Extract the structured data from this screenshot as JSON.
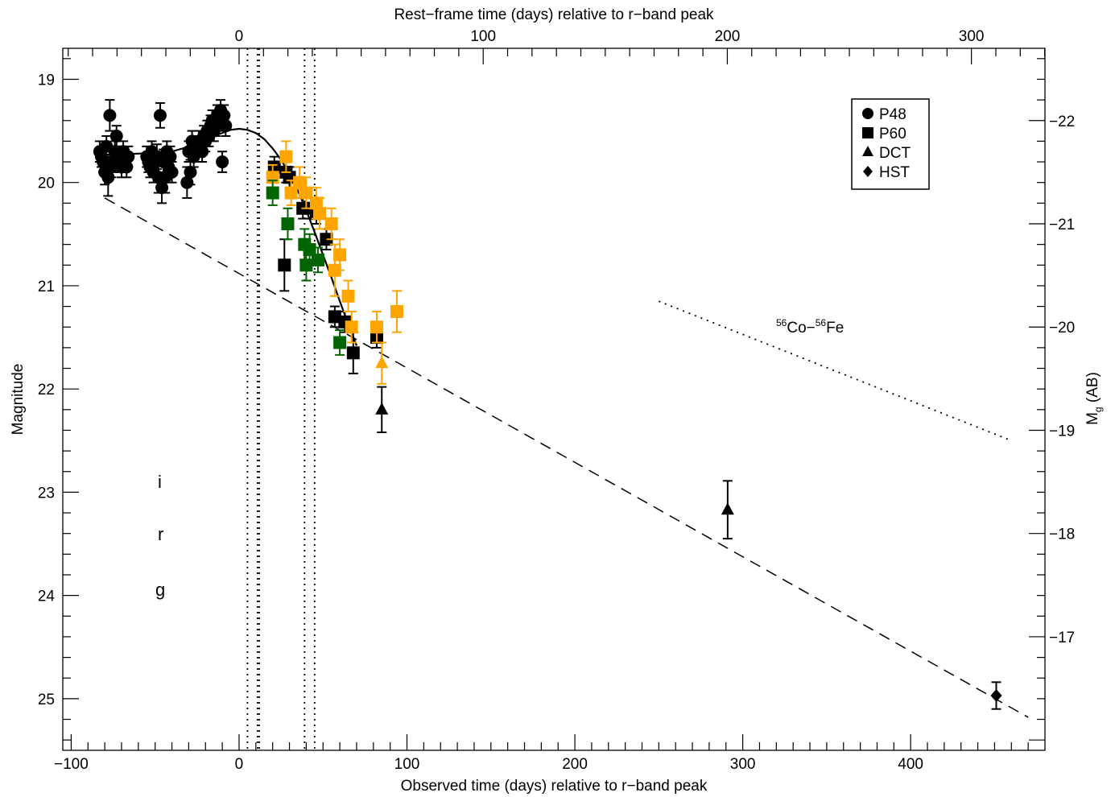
{
  "chart_data": {
    "type": "scatter",
    "title": "",
    "xlabel": "Observed time (days) relative to r−band peak",
    "x2label": "Rest−frame time (days) relative to r−band peak",
    "ylabel": "Magnitude",
    "y2label_main": "M",
    "y2label_sub": "g",
    "y2label_tail": " (AB)",
    "xlim": [
      -105,
      480
    ],
    "ylim": [
      25.5,
      18.7
    ],
    "x_ticks": [
      -100,
      0,
      100,
      200,
      300,
      400
    ],
    "x_tick_labels": [
      "−100",
      "0",
      "100",
      "200",
      "300",
      "400"
    ],
    "x2_ticks": [
      0,
      100,
      200,
      300
    ],
    "x2_tick_labels": [
      "0",
      "100",
      "200",
      "300"
    ],
    "x2_scale": 1.454,
    "y_ticks": [
      19,
      20,
      21,
      22,
      23,
      24,
      25
    ],
    "y_tick_labels": [
      "19",
      "20",
      "21",
      "22",
      "23",
      "24",
      "25"
    ],
    "y2_ticks": [
      -22,
      -21,
      -20,
      -19,
      -18,
      -17
    ],
    "y2_tick_labels": [
      "−22",
      "−21",
      "−20",
      "−19",
      "−18",
      "−17"
    ],
    "y2_offset": 41.4,
    "colors": {
      "r": "#000000",
      "i": "#FFA500",
      "g": "#006400"
    },
    "legend": {
      "position": "top-right",
      "entries": [
        {
          "label": "P48",
          "marker": "circle"
        },
        {
          "label": "P60",
          "marker": "square"
        },
        {
          "label": "DCT",
          "marker": "triangle"
        },
        {
          "label": "HST",
          "marker": "diamond"
        }
      ]
    },
    "band_labels": [
      {
        "text": "i",
        "band": "i"
      },
      {
        "text": "r",
        "band": "r"
      },
      {
        "text": "g",
        "band": "g"
      }
    ],
    "annotation": {
      "sup1": "56",
      "text1": "Co−",
      "sup2": "56",
      "text2": "Fe"
    },
    "vlines": [
      5,
      11,
      12,
      39,
      45
    ],
    "series": [
      {
        "name": "P48",
        "band": "r",
        "marker": "circle",
        "points": [
          [
            -83,
            19.7,
            0.1
          ],
          [
            -82,
            19.75,
            0.1
          ],
          [
            -81,
            19.8,
            0.1
          ],
          [
            -80,
            19.9,
            0.12
          ],
          [
            -79,
            19.65,
            0.1
          ],
          [
            -78,
            19.95,
            0.18
          ],
          [
            -77,
            19.35,
            0.15
          ],
          [
            -76,
            19.85,
            0.1
          ],
          [
            -75,
            19.8,
            0.1
          ],
          [
            -74,
            19.7,
            0.1
          ],
          [
            -73,
            19.55,
            0.1
          ],
          [
            -72,
            19.75,
            0.1
          ],
          [
            -71,
            19.8,
            0.1
          ],
          [
            -70,
            19.85,
            0.1
          ],
          [
            -69,
            19.7,
            0.1
          ],
          [
            -68,
            19.78,
            0.1
          ],
          [
            -67,
            19.85,
            0.1
          ],
          [
            -66,
            19.75,
            0.1
          ],
          [
            -55,
            19.75,
            0.1
          ],
          [
            -54,
            19.8,
            0.1
          ],
          [
            -53,
            19.85,
            0.1
          ],
          [
            -52,
            19.7,
            0.1
          ],
          [
            -51,
            19.9,
            0.1
          ],
          [
            -50,
            19.8,
            0.1
          ],
          [
            -49,
            19.75,
            0.12
          ],
          [
            -48,
            19.95,
            0.15
          ],
          [
            -47,
            19.35,
            0.12
          ],
          [
            -46,
            20.05,
            0.15
          ],
          [
            -45,
            19.8,
            0.12
          ],
          [
            -44,
            19.95,
            0.15
          ],
          [
            -43,
            19.7,
            0.1
          ],
          [
            -42,
            19.85,
            0.1
          ],
          [
            -41,
            19.75,
            0.1
          ],
          [
            -40,
            19.9,
            0.1
          ],
          [
            -31,
            20.0,
            0.15
          ],
          [
            -30,
            19.7,
            0.1
          ],
          [
            -29,
            19.9,
            0.12
          ],
          [
            -28,
            19.6,
            0.1
          ],
          [
            -27,
            19.75,
            0.1
          ],
          [
            -26,
            19.65,
            0.1
          ],
          [
            -25,
            19.7,
            0.1
          ],
          [
            -24,
            19.6,
            0.1
          ],
          [
            -23,
            19.65,
            0.1
          ],
          [
            -22,
            19.7,
            0.1
          ],
          [
            -21,
            19.55,
            0.1
          ],
          [
            -20,
            19.6,
            0.1
          ],
          [
            -19,
            19.5,
            0.1
          ],
          [
            -18,
            19.55,
            0.1
          ],
          [
            -17,
            19.45,
            0.1
          ],
          [
            -16,
            19.4,
            0.1
          ],
          [
            -15,
            19.5,
            0.1
          ],
          [
            -14,
            19.45,
            0.1
          ],
          [
            -13,
            19.35,
            0.1
          ],
          [
            -12,
            19.4,
            0.1
          ],
          [
            -11,
            19.3,
            0.1
          ],
          [
            -10,
            19.8,
            0.1
          ],
          [
            -9,
            19.35,
            0.1
          ],
          [
            -8,
            19.45,
            0.1
          ]
        ]
      },
      {
        "name": "P60",
        "band": "r",
        "marker": "square",
        "points": [
          [
            21,
            19.85,
            0.1
          ],
          [
            27,
            20.8,
            0.25
          ],
          [
            28,
            19.9,
            0.1
          ],
          [
            30,
            19.95,
            0.1
          ],
          [
            38,
            20.25,
            0.1
          ],
          [
            43,
            20.25,
            0.1
          ],
          [
            46,
            20.3,
            0.1
          ],
          [
            52,
            20.55,
            0.1
          ],
          [
            57,
            21.3,
            0.1
          ],
          [
            63,
            21.35,
            0.1
          ],
          [
            68,
            21.65,
            0.2
          ],
          [
            82,
            21.5,
            0.1
          ]
        ]
      },
      {
        "name": "P60",
        "band": "i",
        "marker": "square",
        "points": [
          [
            20,
            19.95,
            0.12
          ],
          [
            28,
            19.75,
            0.15
          ],
          [
            31,
            20.1,
            0.12
          ],
          [
            36,
            20.0,
            0.15
          ],
          [
            40,
            20.1,
            0.15
          ],
          [
            46,
            20.2,
            0.15
          ],
          [
            48,
            20.3,
            0.15
          ],
          [
            55,
            20.4,
            0.15
          ],
          [
            57,
            20.85,
            0.25
          ],
          [
            60,
            20.7,
            0.15
          ],
          [
            65,
            21.1,
            0.15
          ],
          [
            67,
            21.4,
            0.15
          ],
          [
            82,
            21.4,
            0.15
          ],
          [
            94,
            21.25,
            0.2
          ]
        ]
      },
      {
        "name": "P60",
        "band": "g",
        "marker": "square",
        "points": [
          [
            20,
            20.1,
            0.12
          ],
          [
            29,
            20.4,
            0.15
          ],
          [
            39,
            20.6,
            0.15
          ],
          [
            40,
            20.8,
            0.15
          ],
          [
            42,
            20.65,
            0.15
          ],
          [
            47,
            20.75,
            0.12
          ],
          [
            60,
            21.55,
            0.12
          ]
        ]
      },
      {
        "name": "DCT",
        "band": "i",
        "marker": "triangle",
        "points": [
          [
            85,
            21.75,
            0.2
          ]
        ]
      },
      {
        "name": "DCT",
        "band": "r",
        "marker": "triangle",
        "points": [
          [
            85,
            22.2,
            0.22
          ],
          [
            291,
            23.17,
            0.28
          ]
        ]
      },
      {
        "name": "HST",
        "band": "r",
        "marker": "diamond",
        "points": [
          [
            451,
            24.97,
            0.13
          ]
        ]
      }
    ],
    "model_curve": [
      [
        -85,
        19.73
      ],
      [
        -75,
        19.73
      ],
      [
        -60,
        19.72
      ],
      [
        -40,
        19.7
      ],
      [
        -25,
        19.63
      ],
      [
        -15,
        19.55
      ],
      [
        -5,
        19.49
      ],
      [
        0,
        19.48
      ],
      [
        5,
        19.49
      ],
      [
        10,
        19.52
      ],
      [
        15,
        19.58
      ],
      [
        20,
        19.67
      ],
      [
        25,
        19.78
      ],
      [
        30,
        19.92
      ],
      [
        35,
        20.08
      ],
      [
        40,
        20.27
      ],
      [
        45,
        20.48
      ],
      [
        50,
        20.7
      ],
      [
        55,
        20.92
      ],
      [
        60,
        21.15
      ],
      [
        65,
        21.37
      ],
      [
        70,
        21.58
      ]
    ],
    "decay_line": [
      [
        -80,
        20.15
      ],
      [
        470,
        25.18
      ]
    ],
    "co_fe_line": [
      [
        250,
        21.15
      ],
      [
        460,
        22.5
      ]
    ]
  }
}
